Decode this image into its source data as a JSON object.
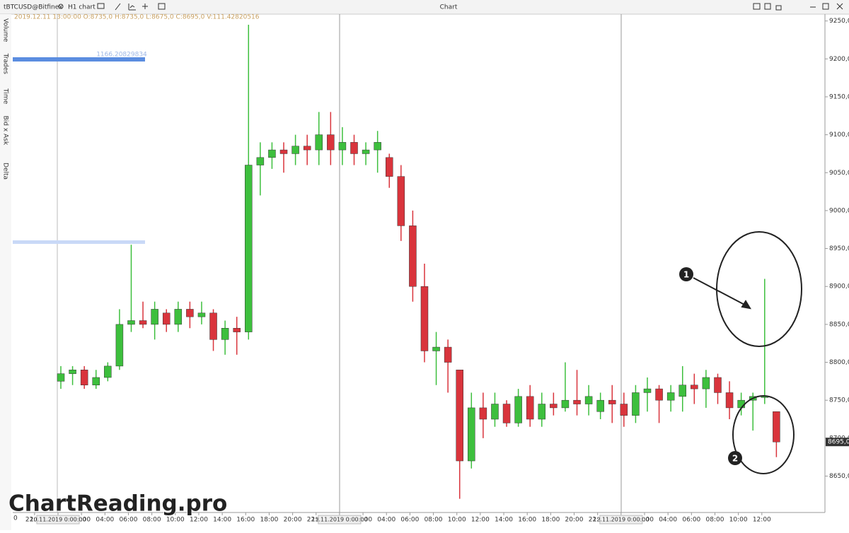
{
  "toolbar": {
    "symbol": "tBTCUSD@Bitfinex",
    "timeframe": "H1 chart",
    "title": "Chart"
  },
  "info_line": "2019.12.11 13:00:00 O:8735,0 H:8735,0 L:8675,0 C:8695,0 V:111.42820516",
  "side_tabs": [
    "Volume",
    "Trades",
    "Time",
    "Bid x Ask",
    "Delta"
  ],
  "profile_label": "1166.20829834",
  "profile_axis_label": "0",
  "watermark": "ChartReading.pro",
  "annotations": [
    "1",
    "2"
  ],
  "chart_data": {
    "type": "candlestick",
    "open": [
      8775,
      8785,
      8790,
      8770,
      8780,
      8795,
      8850,
      8855,
      8850,
      8865,
      8850,
      8870,
      8860,
      8865,
      8830,
      8845,
      8840,
      9060,
      9070,
      9080,
      9075,
      9085,
      9080,
      9100,
      9080,
      9090,
      9075,
      9080,
      9070,
      9045,
      8980,
      8900,
      8815,
      8820,
      8790,
      8670,
      8740,
      8725,
      8745,
      8720,
      8755,
      8725,
      8745,
      8740,
      8750,
      8745,
      8735,
      8750,
      8745,
      8730,
      8760,
      8765,
      8750,
      8755,
      8770,
      8765,
      8780,
      8760,
      8740,
      8750,
      8755,
      8735
    ],
    "high": [
      8795,
      8795,
      8795,
      8790,
      8800,
      8870,
      8955,
      8880,
      8880,
      8870,
      8880,
      8880,
      8880,
      8870,
      8855,
      8860,
      9245,
      9090,
      9090,
      9090,
      9100,
      9100,
      9130,
      9130,
      9110,
      9100,
      9090,
      9105,
      9075,
      9060,
      9000,
      8930,
      8840,
      8830,
      8790,
      8760,
      8760,
      8760,
      8750,
      8765,
      8770,
      8760,
      8760,
      8800,
      8790,
      8770,
      8760,
      8770,
      8760,
      8770,
      8780,
      8770,
      8770,
      8795,
      8785,
      8790,
      8785,
      8775,
      8760,
      8760,
      8910,
      8735
    ],
    "low": [
      8765,
      8770,
      8765,
      8765,
      8775,
      8790,
      8840,
      8845,
      8830,
      8840,
      8840,
      8845,
      8850,
      8815,
      8810,
      8810,
      8830,
      9020,
      9055,
      9050,
      9060,
      9060,
      9060,
      9060,
      9060,
      9060,
      9060,
      9050,
      9030,
      8960,
      8880,
      8800,
      8770,
      8760,
      8620,
      8660,
      8700,
      8715,
      8715,
      8715,
      8715,
      8715,
      8730,
      8735,
      8730,
      8730,
      8725,
      8720,
      8715,
      8720,
      8735,
      8720,
      8735,
      8735,
      8745,
      8740,
      8745,
      8725,
      8730,
      8710,
      8745,
      8675
    ],
    "close": [
      8785,
      8790,
      8770,
      8780,
      8795,
      8850,
      8855,
      8850,
      8870,
      8850,
      8870,
      8860,
      8865,
      8830,
      8845,
      8840,
      9060,
      9070,
      9080,
      9075,
      9085,
      9080,
      9100,
      9080,
      9090,
      9075,
      9080,
      9090,
      9045,
      8980,
      8900,
      8815,
      8820,
      8800,
      8670,
      8740,
      8725,
      8745,
      8720,
      8755,
      8725,
      8745,
      8740,
      8750,
      8745,
      8755,
      8750,
      8745,
      8730,
      8760,
      8765,
      8750,
      8760,
      8770,
      8765,
      8780,
      8760,
      8740,
      8750,
      8755,
      8755,
      8695
    ],
    "up_color": "#3dbf3d",
    "down_color": "#d9343c",
    "ylim": [
      8602,
      9259
    ],
    "yticks": [
      {
        "value": 9250,
        "label": "9250,0"
      },
      {
        "value": 9200,
        "label": "9200,0"
      },
      {
        "value": 9150,
        "label": "9150,0"
      },
      {
        "value": 9100,
        "label": "9100,0"
      },
      {
        "value": 9050,
        "label": "9050,0"
      },
      {
        "value": 9000,
        "label": "9000,0"
      },
      {
        "value": 8950,
        "label": "8950,0"
      },
      {
        "value": 8900,
        "label": "8900,0"
      },
      {
        "value": 8850,
        "label": "8850,0"
      },
      {
        "value": 8800,
        "label": "8800,0"
      },
      {
        "value": 8750,
        "label": "8750,0"
      },
      {
        "value": 8700,
        "label": "8700,0"
      },
      {
        "value": 8650,
        "label": "8650,0"
      }
    ],
    "last_price": {
      "value": 8695,
      "label": "8695,0"
    },
    "x_labels": [
      "22:00",
      "00:00",
      "02:00",
      "04:00",
      "06:00",
      "08:00",
      "10:00",
      "12:00",
      "14:00",
      "16:00",
      "18:00",
      "20:00",
      "22:00",
      "00:00",
      "02:00",
      "04:00",
      "06:00",
      "08:00",
      "10:00",
      "12:00",
      "14:00",
      "16:00",
      "18:00",
      "20:00",
      "22:00",
      "00:00",
      "02:00",
      "04:00",
      "06:00",
      "08:00",
      "10:00",
      "12:00"
    ],
    "date_labels": [
      "10.11.2019 0:00:00",
      "11.11.2019 0:00:00",
      "12.11.2019 0:00:00"
    ]
  }
}
